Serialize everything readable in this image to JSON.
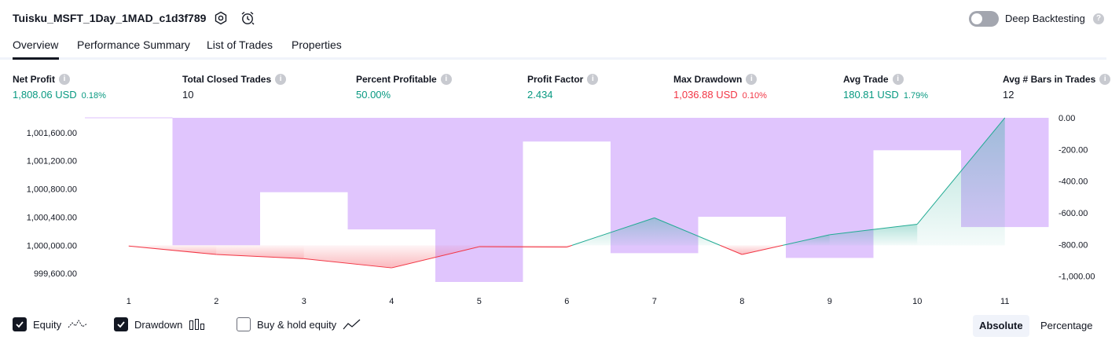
{
  "header": {
    "strategy_title": "Tuisku_MSFT_1Day_1MAD_c1d3f789",
    "settings_icon": "gear-icon",
    "alert_icon": "alarm-clock-icon",
    "deep_backtesting_label": "Deep Backtesting",
    "deep_backtesting_enabled": false
  },
  "tabs": [
    {
      "label": "Overview",
      "active": true
    },
    {
      "label": "Performance Summary",
      "active": false
    },
    {
      "label": "List of Trades",
      "active": false
    },
    {
      "label": "Properties",
      "active": false
    }
  ],
  "metrics": [
    {
      "label": "Net Profit",
      "value": "1,808.06 USD",
      "pct": "0.18%",
      "color": "#089981"
    },
    {
      "label": "Total Closed Trades",
      "value": "10",
      "pct": "",
      "color": "#131722"
    },
    {
      "label": "Percent Profitable",
      "value": "50.00%",
      "pct": "",
      "color": "#089981"
    },
    {
      "label": "Profit Factor",
      "value": "2.434",
      "pct": "",
      "color": "#089981"
    },
    {
      "label": "Max Drawdown",
      "value": "1,036.88 USD",
      "pct": "0.10%",
      "color": "#f23645"
    },
    {
      "label": "Avg Trade",
      "value": "180.81 USD",
      "pct": "1.79%",
      "color": "#089981"
    },
    {
      "label": "Avg # Bars in Trades",
      "value": "12",
      "pct": "",
      "color": "#131722"
    }
  ],
  "chart_data": {
    "type": "line",
    "x": [
      1,
      2,
      3,
      4,
      5,
      6,
      7,
      8,
      9,
      10,
      11
    ],
    "equity_baseline": 1000000,
    "series": [
      {
        "name": "Equity",
        "type": "line",
        "axis": "left",
        "values": [
          999990,
          999870,
          999810,
          999680,
          999980,
          999975,
          1000390,
          999870,
          1000150,
          1000300,
          1001810
        ]
      },
      {
        "name": "Drawdown",
        "type": "bar",
        "axis": "right",
        "values": [
          0,
          -805,
          -470,
          -705,
          -1036.88,
          -150,
          -855,
          -625,
          -885,
          -205,
          -690
        ]
      }
    ],
    "left_axis": {
      "ticks": [
        "1,001,600.00",
        "1,001,200.00",
        "1,000,800.00",
        "1,000,400.00",
        "1,000,000.00",
        "999,600.00"
      ],
      "range": [
        999480,
        1001810
      ]
    },
    "right_axis": {
      "ticks": [
        "0.00",
        "-200.00",
        "-400.00",
        "-600.00",
        "-800.00",
        "-1,000.00"
      ],
      "range": [
        -1036.88,
        0
      ]
    },
    "colors": {
      "equity_up": "#22ab94",
      "equity_down": "#f23645",
      "drawdown": "#ddbffd"
    }
  },
  "legend": {
    "items": [
      {
        "label": "Equity",
        "checked": true,
        "icon": "equity-line-icon"
      },
      {
        "label": "Drawdown",
        "checked": true,
        "icon": "drawdown-bars-icon"
      },
      {
        "label": "Buy & hold equity",
        "checked": false,
        "icon": "buy-hold-line-icon"
      }
    ],
    "mode_absolute": "Absolute",
    "mode_percentage": "Percentage",
    "active_mode": "Absolute"
  }
}
